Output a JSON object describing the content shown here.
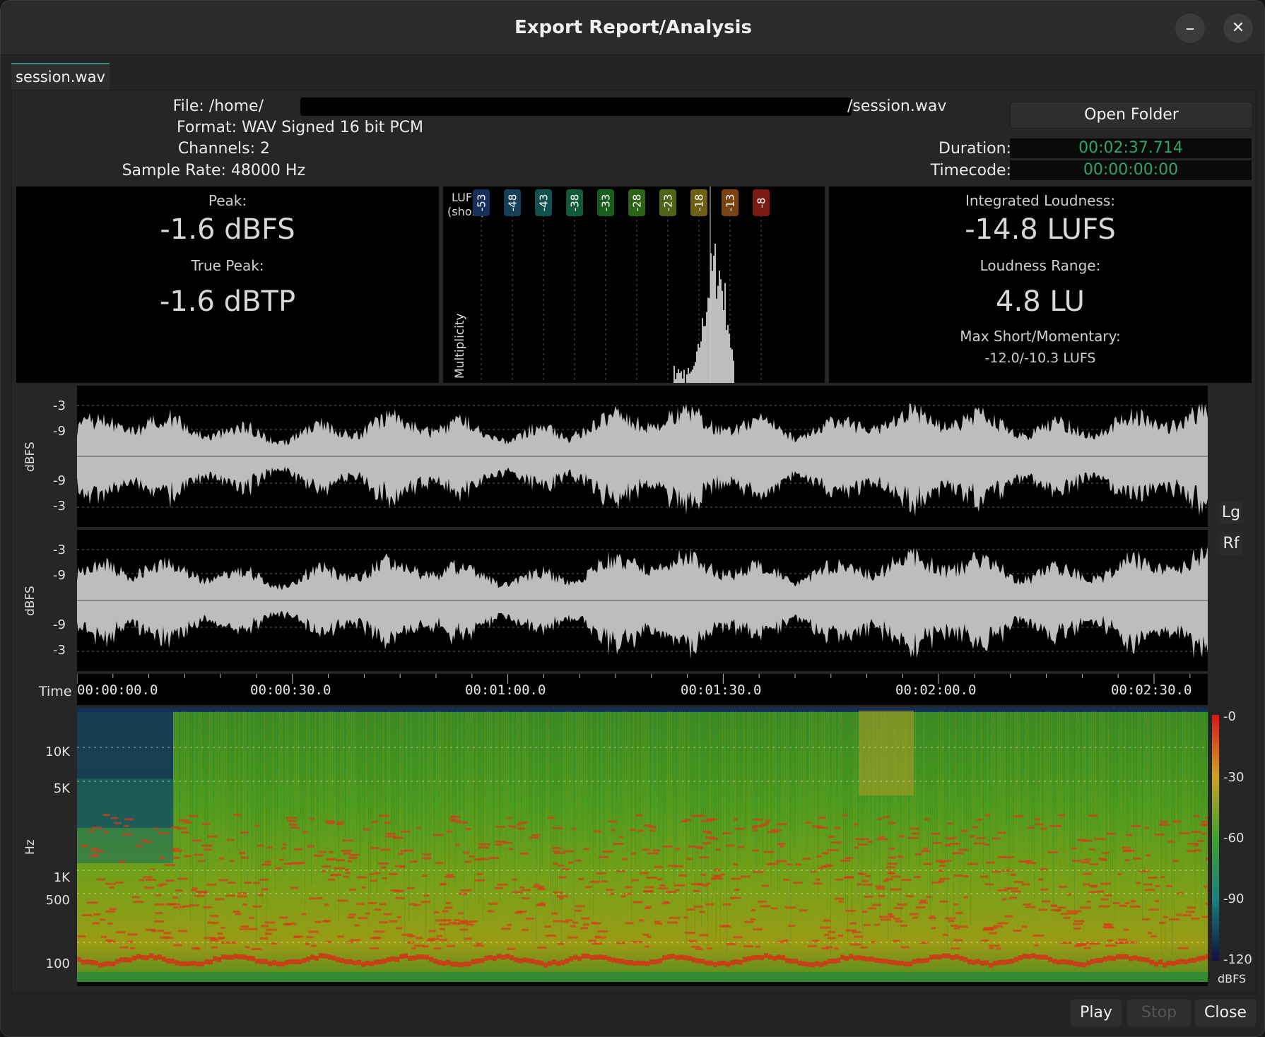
{
  "window": {
    "title": "Export Report/Analysis",
    "minimize_glyph": "–",
    "close_glyph": "✕"
  },
  "tabs": [
    {
      "label": "session.wav",
      "active": true
    }
  ],
  "file_info": {
    "file_prefix": "File: /home/",
    "file_suffix": "/session.wav",
    "format": "Format: WAV Signed 16 bit PCM",
    "channels": "Channels: 2",
    "sample_rate": "Sample Rate: 48000 Hz",
    "open_folder": "Open Folder",
    "duration_label": "Duration:",
    "duration_value": "00:02:37.714",
    "timecode_label": "Timecode:",
    "timecode_value": "00:00:00:00"
  },
  "peak": {
    "peak_label": "Peak:",
    "peak_value": "-1.6 dBFS",
    "true_peak_label": "True Peak:",
    "true_peak_value": "-1.6 dBTP"
  },
  "loudness": {
    "integrated_label": "Integrated Loudness:",
    "integrated_value": "-14.8 LUFS",
    "range_label": "Loudness Range:",
    "range_value": "4.8 LU",
    "max_label": "Max Short/Momentary:",
    "max_value": "-12.0/-10.3 LUFS"
  },
  "histogram": {
    "title_line1": "LUFS",
    "title_line2": "(short)",
    "y_label": "Multiplicity",
    "ticks": [
      {
        "label": "-53",
        "color": "#16305a"
      },
      {
        "label": "-48",
        "color": "#163f5a"
      },
      {
        "label": "-43",
        "color": "#12504e"
      },
      {
        "label": "-38",
        "color": "#125a3a"
      },
      {
        "label": "-33",
        "color": "#1a5e1e"
      },
      {
        "label": "-28",
        "color": "#2c6416"
      },
      {
        "label": "-23",
        "color": "#4e6416"
      },
      {
        "label": "-18",
        "color": "#6e6212"
      },
      {
        "label": "-13",
        "color": "#7a4412"
      },
      {
        "label": "-8",
        "color": "#7a1a12"
      }
    ],
    "colors": {
      "bars": "#bdbdbd"
    }
  },
  "waveform": {
    "y_axis_label": "dBFS",
    "ticks": [
      "-3",
      "-9",
      "-9",
      "-3"
    ],
    "buttons": {
      "log": "Lg",
      "rf": "Rf"
    },
    "colors": {
      "fill": "#bdbdbd",
      "bg": "#000000"
    }
  },
  "timeline": {
    "label": "Time",
    "ticks": [
      "00:00:00.0",
      "00:00:30.0",
      "00:01:00.0",
      "00:01:30.0",
      "00:02:00.0",
      "00:02:30.0"
    ]
  },
  "spectrogram": {
    "y_axis_label": "Hz",
    "freq_ticks": [
      "10K",
      "5K",
      "1K",
      "500",
      "100"
    ],
    "scale_ticks": [
      "-0",
      "-30",
      "-60",
      "-90",
      "-120"
    ],
    "scale_unit": "dBFS"
  },
  "footer": {
    "play": "Play",
    "stop": "Stop",
    "close": "Close"
  }
}
